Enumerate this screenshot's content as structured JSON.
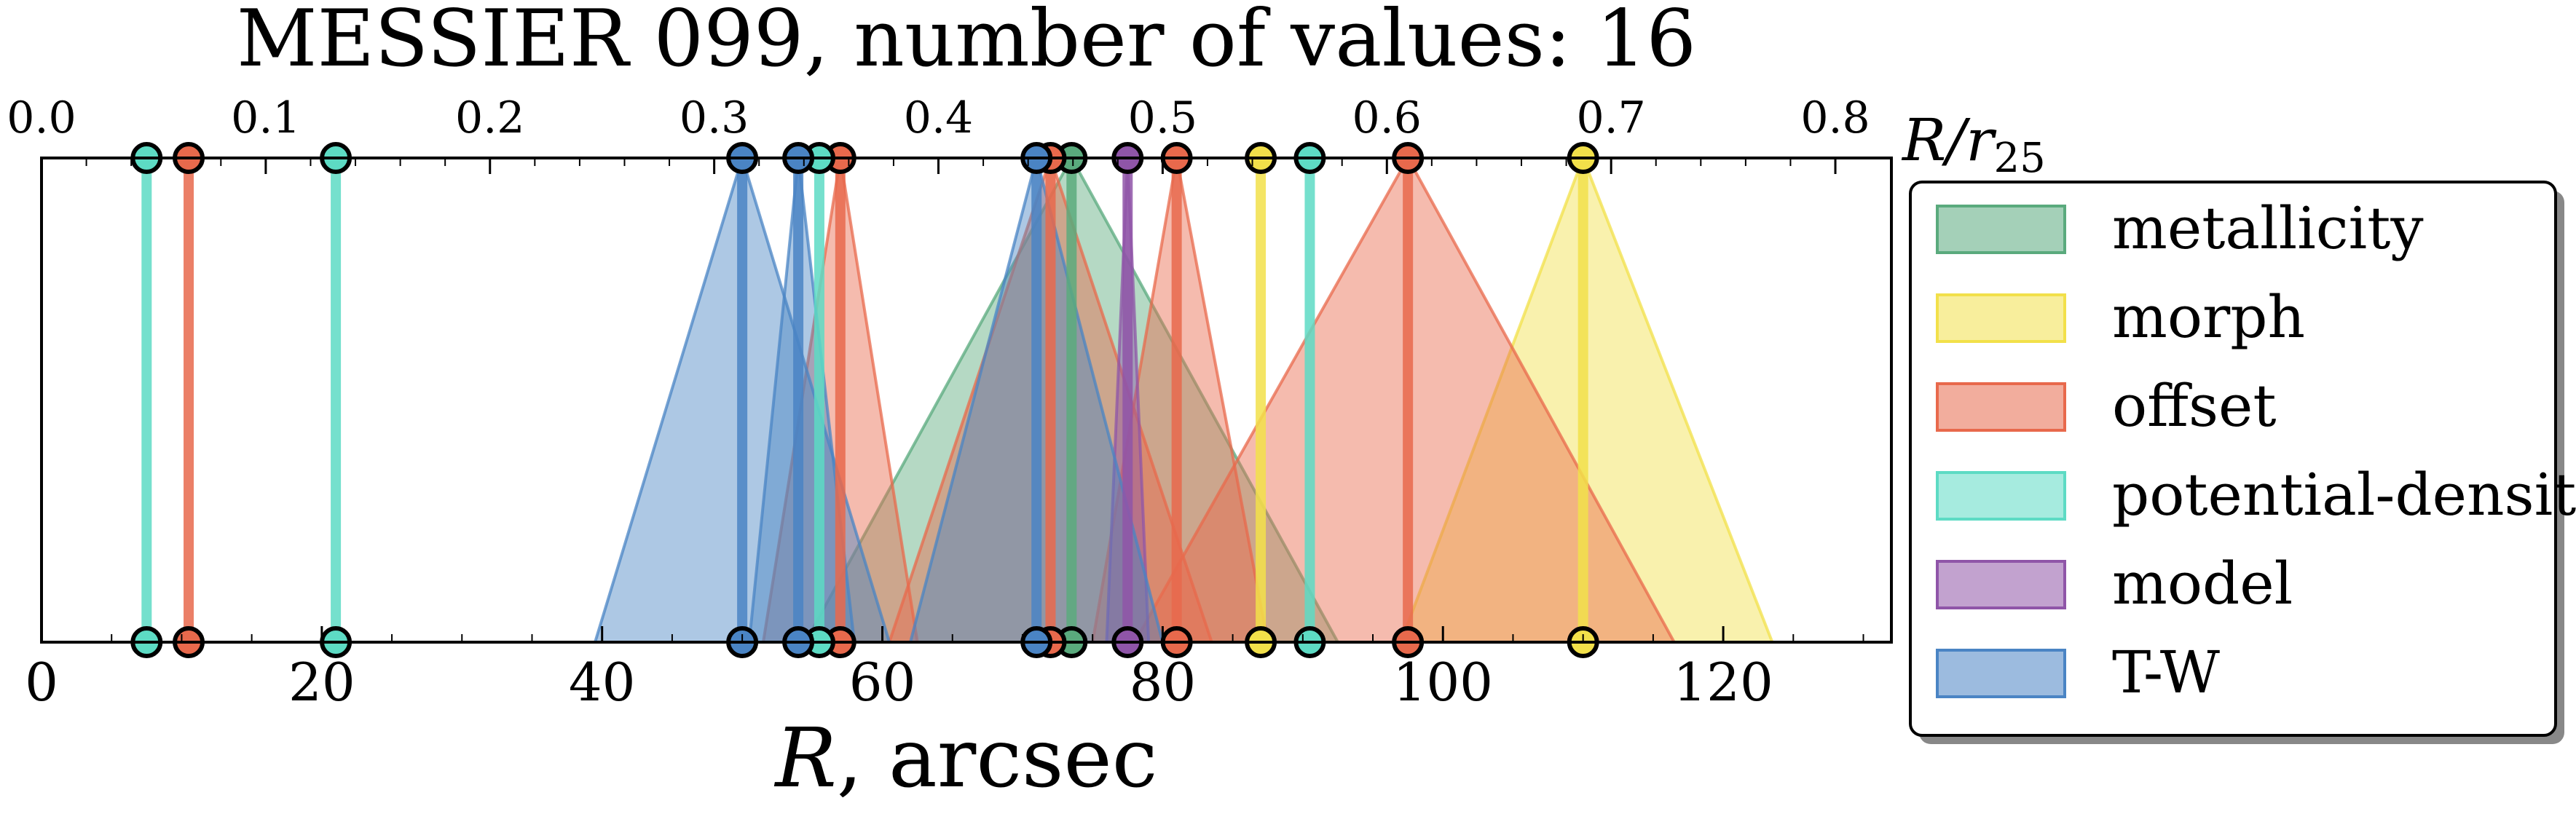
{
  "chart_data": {
    "type": "scatter",
    "title": "MESSIER 099, number of values: 16",
    "xlabel": "R, arcsec",
    "xlabel_math": "R",
    "xlabel_rest": ", arcsec",
    "top_axis_label_main": "R/r",
    "top_axis_label_sub": "25",
    "xlim": [
      0,
      132
    ],
    "top_xlim": [
      0,
      0.825
    ],
    "x_ticks": [
      "0",
      "20",
      "40",
      "60",
      "80",
      "100",
      "120"
    ],
    "x_tick_values": [
      0,
      20,
      40,
      60,
      80,
      100,
      120
    ],
    "top_ticks": [
      "0.0",
      "0.1",
      "0.2",
      "0.3",
      "0.4",
      "0.5",
      "0.6",
      "0.7",
      "0.8"
    ],
    "top_tick_values": [
      0.0,
      0.1,
      0.2,
      0.3,
      0.4,
      0.5,
      0.6,
      0.7,
      0.8
    ],
    "grid": false,
    "legend_position": "right",
    "series": [
      {
        "name": "metallicity",
        "color": "#5aaa7d",
        "values": [
          {
            "r": 73.5,
            "lo": 54.5,
            "hi": 92.5
          }
        ]
      },
      {
        "name": "morph",
        "color": "#f2e04a",
        "values": [
          {
            "r": 87.0,
            "lo": 87.0,
            "hi": 87.0
          },
          {
            "r": 110.0,
            "lo": 97.0,
            "hi": 123.5
          }
        ]
      },
      {
        "name": "offset",
        "color": "#e8694c",
        "values": [
          {
            "r": 10.5,
            "lo": 10.5,
            "hi": 10.5
          },
          {
            "r": 57.0,
            "lo": 51.5,
            "hi": 62.5
          },
          {
            "r": 72.0,
            "lo": 60.5,
            "hi": 83.5
          },
          {
            "r": 81.0,
            "lo": 75.0,
            "hi": 87.5
          },
          {
            "r": 97.5,
            "lo": 78.0,
            "hi": 116.5
          }
        ]
      },
      {
        "name": "potential-density",
        "color": "#5ddbc4",
        "values": [
          {
            "r": 7.5,
            "lo": 7.5,
            "hi": 7.5
          },
          {
            "r": 21.0,
            "lo": 21.0,
            "hi": 21.0
          },
          {
            "r": 55.5,
            "lo": 55.5,
            "hi": 55.5
          },
          {
            "r": 90.5,
            "lo": 90.5,
            "hi": 90.5
          }
        ]
      },
      {
        "name": "model",
        "color": "#8f55a8",
        "values": [
          {
            "r": 77.5,
            "lo": 76.0,
            "hi": 79.0
          }
        ]
      },
      {
        "name": "T-W",
        "color": "#4a84c4",
        "values": [
          {
            "r": 50.0,
            "lo": 39.5,
            "hi": 60.5
          },
          {
            "r": 54.0,
            "lo": 50.5,
            "hi": 58.0
          },
          {
            "r": 71.0,
            "lo": 62.0,
            "hi": 80.0
          }
        ]
      }
    ]
  }
}
